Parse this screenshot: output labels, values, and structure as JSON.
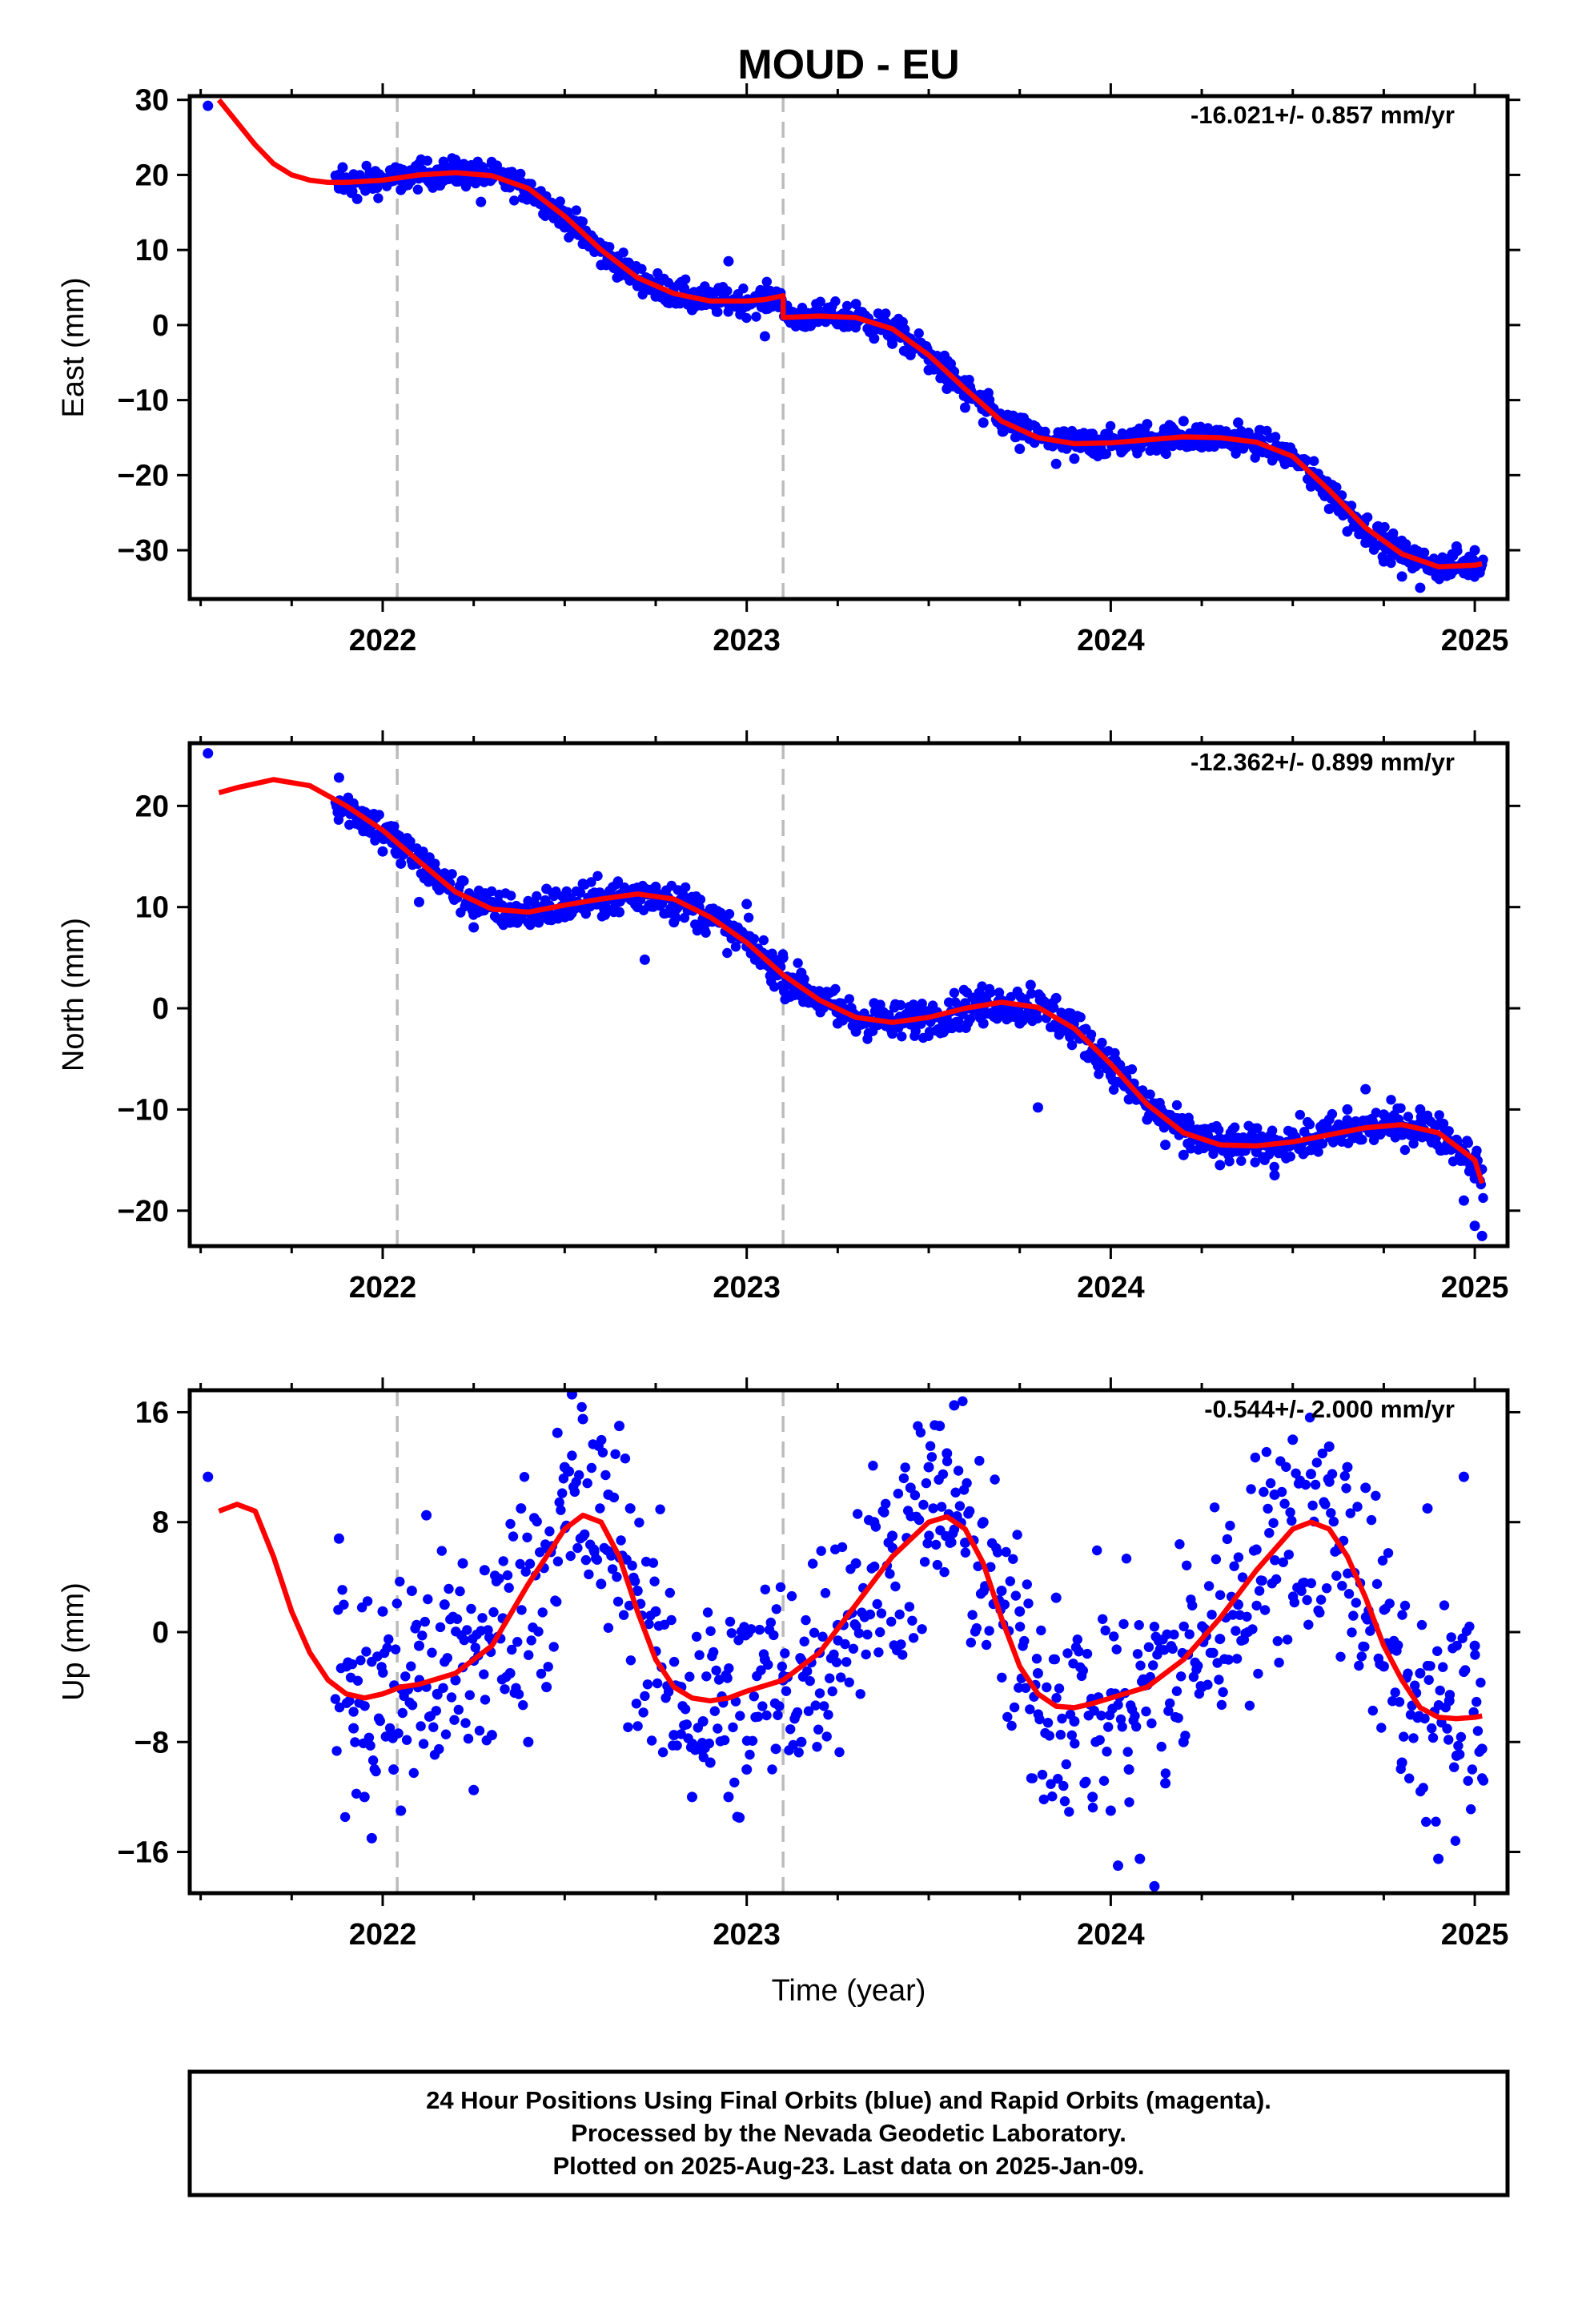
{
  "title": "MOUD - EU",
  "xlabel": "Time (year)",
  "colors": {
    "final_orbits": "#0000ff",
    "model": "#ff0000",
    "offset_lines": "#bbbbbb",
    "frame": "#000000"
  },
  "footer": {
    "line1": "24 Hour Positions Using Final Orbits (blue) and Rapid Orbits (magenta).",
    "line2": "Processed by the Nevada Geodetic Laboratory.",
    "line3": "Plotted on 2025-Aug-23. Last data on 2025-Jan-09."
  },
  "chart_data": [
    {
      "type": "scatter",
      "ylabel": "East (mm)",
      "rate": "-16.021+/- 0.857 mm/yr",
      "xlim": [
        2021.47,
        2025.09
      ],
      "ylim": [
        -36.5,
        30.5
      ],
      "xticks": [
        2022,
        2023,
        2024,
        2025
      ],
      "yticks": [
        -30,
        -20,
        -10,
        0,
        10,
        20,
        30
      ],
      "offset_lines": [
        2022.04,
        2023.1
      ],
      "model": {
        "x": [
          2021.55,
          2021.6,
          2021.65,
          2021.7,
          2021.75,
          2021.8,
          2021.85,
          2021.9,
          2022.0,
          2022.1,
          2022.2,
          2022.3,
          2022.4,
          2022.5,
          2022.6,
          2022.7,
          2022.8,
          2022.9,
          2023.0,
          2023.05,
          2023.1,
          2023.1,
          2023.2,
          2023.3,
          2023.4,
          2023.5,
          2023.6,
          2023.7,
          2023.8,
          2023.9,
          2024.0,
          2024.1,
          2024.2,
          2024.3,
          2024.4,
          2024.5,
          2024.6,
          2024.7,
          2024.8,
          2024.9,
          2025.0,
          2025.02
        ],
        "y": [
          30,
          27,
          24,
          21.5,
          20,
          19.3,
          19,
          19,
          19.3,
          20,
          20.3,
          19.9,
          18.2,
          14.5,
          10,
          6.3,
          4.2,
          3.2,
          3.2,
          3.4,
          3.9,
          1.0,
          1.2,
          1.0,
          -0.5,
          -4,
          -8.5,
          -12.8,
          -15,
          -15.8,
          -15.7,
          -15.3,
          -14.9,
          -15,
          -15.6,
          -17.5,
          -22,
          -27,
          -30.5,
          -32.2,
          -32,
          -31.8
        ]
      },
      "points": [
        [
          2021.52,
          29.2
        ],
        [
          2021.88,
          18.2
        ],
        [
          2021.89,
          21.0
        ],
        [
          2021.93,
          16.8
        ],
        [
          2021.98,
          20.5
        ],
        [
          2022.05,
          18.0
        ],
        [
          2022.1,
          21.5
        ],
        [
          2022.15,
          19.2
        ],
        [
          2022.2,
          22.0
        ],
        [
          2022.25,
          20.8
        ],
        [
          2022.27,
          16.4
        ],
        [
          2022.3,
          21.5
        ],
        [
          2022.35,
          18.5
        ],
        [
          2022.4,
          18.8
        ],
        [
          2022.45,
          16.5
        ],
        [
          2022.5,
          13.0
        ],
        [
          2022.55,
          10.8
        ],
        [
          2022.6,
          8.0
        ],
        [
          2022.65,
          6.5
        ],
        [
          2022.7,
          5.2
        ],
        [
          2022.75,
          3.8
        ],
        [
          2022.8,
          5.0
        ],
        [
          2022.85,
          2.0
        ],
        [
          2022.9,
          3.5
        ],
        [
          2022.95,
          8.5
        ],
        [
          2023.0,
          2.5
        ],
        [
          2023.05,
          -1.5
        ],
        [
          2023.15,
          0.0
        ],
        [
          2023.2,
          1.8
        ],
        [
          2023.25,
          0.3
        ],
        [
          2023.3,
          2.8
        ],
        [
          2023.35,
          -1.8
        ],
        [
          2023.4,
          -2.5
        ],
        [
          2023.45,
          -4.0
        ],
        [
          2023.5,
          -6.0
        ],
        [
          2023.55,
          -8.5
        ],
        [
          2023.6,
          -11.0
        ],
        [
          2023.65,
          -13.0
        ],
        [
          2023.7,
          -13.5
        ],
        [
          2023.75,
          -16.5
        ],
        [
          2023.8,
          -14.0
        ],
        [
          2023.85,
          -18.5
        ],
        [
          2023.9,
          -17.8
        ],
        [
          2023.95,
          -14.5
        ],
        [
          2024.05,
          -15.0
        ],
        [
          2024.1,
          -13.2
        ],
        [
          2024.15,
          -17.0
        ],
        [
          2024.2,
          -12.8
        ],
        [
          2024.25,
          -16.3
        ],
        [
          2024.3,
          -14.0
        ],
        [
          2024.35,
          -13.0
        ],
        [
          2024.4,
          -15.8
        ],
        [
          2024.45,
          -17.5
        ],
        [
          2024.5,
          -18.0
        ],
        [
          2024.55,
          -21.5
        ],
        [
          2024.6,
          -24.5
        ],
        [
          2024.65,
          -27.5
        ],
        [
          2024.7,
          -29.0
        ],
        [
          2024.75,
          -31.5
        ],
        [
          2024.8,
          -33.5
        ],
        [
          2024.85,
          -35.0
        ],
        [
          2024.9,
          -33.0
        ],
        [
          2024.95,
          -29.5
        ],
        [
          2025.0,
          -30.0
        ],
        [
          2025.02,
          -31.5
        ]
      ]
    },
    {
      "type": "scatter",
      "ylabel": "North (mm)",
      "rate": "-12.362+/- 0.899 mm/yr",
      "xlim": [
        2021.47,
        2025.09
      ],
      "ylim": [
        -23.5,
        26.2
      ],
      "xticks": [
        2022,
        2023,
        2024,
        2025
      ],
      "yticks": [
        -20,
        -10,
        0,
        10,
        20
      ],
      "offset_lines": [
        2022.04,
        2023.1
      ],
      "model": {
        "x": [
          2021.55,
          2021.6,
          2021.7,
          2021.8,
          2021.9,
          2022.0,
          2022.1,
          2022.2,
          2022.3,
          2022.4,
          2022.5,
          2022.6,
          2022.7,
          2022.8,
          2022.9,
          2023.0,
          2023.1,
          2023.2,
          2023.3,
          2023.4,
          2023.5,
          2023.6,
          2023.7,
          2023.8,
          2023.9,
          2024.0,
          2024.1,
          2024.2,
          2024.3,
          2024.4,
          2024.5,
          2024.6,
          2024.7,
          2024.8,
          2024.9,
          2025.0,
          2025.02
        ],
        "y": [
          21.3,
          21.8,
          22.6,
          22.0,
          20.0,
          17.6,
          14.5,
          11.5,
          9.8,
          9.5,
          10.2,
          10.8,
          11.3,
          10.8,
          9.0,
          6.5,
          3.3,
          0.8,
          -0.9,
          -1.4,
          -0.9,
          0.0,
          0.6,
          0.1,
          -2.0,
          -5.5,
          -9.5,
          -12.3,
          -13.5,
          -13.6,
          -13.2,
          -12.5,
          -11.8,
          -11.5,
          -12.3,
          -15.0,
          -17.3
        ]
      },
      "points": [
        [
          2021.52,
          25.2
        ],
        [
          2021.88,
          22.8
        ],
        [
          2021.9,
          20.5
        ],
        [
          2021.95,
          18.0
        ],
        [
          2022.0,
          15.5
        ],
        [
          2022.05,
          14.3
        ],
        [
          2022.1,
          10.5
        ],
        [
          2022.15,
          12.0
        ],
        [
          2022.2,
          11.3
        ],
        [
          2022.25,
          8.0
        ],
        [
          2022.3,
          10.5
        ],
        [
          2022.35,
          10.0
        ],
        [
          2022.4,
          8.5
        ],
        [
          2022.45,
          11.8
        ],
        [
          2022.5,
          9.0
        ],
        [
          2022.55,
          12.3
        ],
        [
          2022.6,
          11.0
        ],
        [
          2022.65,
          9.5
        ],
        [
          2022.7,
          10.0
        ],
        [
          2022.72,
          4.8
        ],
        [
          2022.75,
          12.0
        ],
        [
          2022.8,
          8.5
        ],
        [
          2022.85,
          11.0
        ],
        [
          2022.9,
          9.8
        ],
        [
          2022.95,
          7.5
        ],
        [
          2023.0,
          10.3
        ],
        [
          2023.05,
          4.5
        ],
        [
          2023.1,
          5.0
        ],
        [
          2023.15,
          3.5
        ],
        [
          2023.2,
          1.0
        ],
        [
          2023.25,
          -1.5
        ],
        [
          2023.3,
          -2.3
        ],
        [
          2023.35,
          0.5
        ],
        [
          2023.4,
          -2.5
        ],
        [
          2023.45,
          -0.5
        ],
        [
          2023.5,
          -1.0
        ],
        [
          2023.55,
          -2.0
        ],
        [
          2023.6,
          0.5
        ],
        [
          2023.65,
          -1.5
        ],
        [
          2023.7,
          -0.5
        ],
        [
          2023.75,
          -1.5
        ],
        [
          2023.78,
          2.3
        ],
        [
          2023.8,
          -9.8
        ],
        [
          2023.85,
          1.0
        ],
        [
          2023.9,
          -0.8
        ],
        [
          2023.95,
          -4.5
        ],
        [
          2024.0,
          -6.5
        ],
        [
          2024.05,
          -9.0
        ],
        [
          2024.1,
          -11.0
        ],
        [
          2024.15,
          -13.5
        ],
        [
          2024.2,
          -14.5
        ],
        [
          2024.25,
          -12.0
        ],
        [
          2024.3,
          -15.5
        ],
        [
          2024.35,
          -13.5
        ],
        [
          2024.4,
          -14.2
        ],
        [
          2024.45,
          -16.5
        ],
        [
          2024.5,
          -12.5
        ],
        [
          2024.55,
          -14.0
        ],
        [
          2024.6,
          -11.0
        ],
        [
          2024.65,
          -10.0
        ],
        [
          2024.7,
          -8.0
        ],
        [
          2024.75,
          -10.5
        ],
        [
          2024.8,
          -12.5
        ],
        [
          2024.85,
          -10.0
        ],
        [
          2024.9,
          -11.5
        ],
        [
          2024.95,
          -13.0
        ],
        [
          2024.97,
          -19.0
        ],
        [
          2025.0,
          -21.5
        ],
        [
          2025.02,
          -22.5
        ]
      ]
    },
    {
      "type": "scatter",
      "ylabel": "Up (mm)",
      "rate": "-0.544+/- 2.000 mm/yr",
      "xlim": [
        2021.47,
        2025.09
      ],
      "ylim": [
        -19.0,
        17.6
      ],
      "xticks": [
        2022,
        2023,
        2024,
        2025
      ],
      "yticks": [
        -16,
        -8,
        0,
        8,
        16
      ],
      "offset_lines": [
        2022.04,
        2023.1
      ],
      "model": {
        "x": [
          2021.55,
          2021.6,
          2021.65,
          2021.7,
          2021.75,
          2021.8,
          2021.85,
          2021.9,
          2021.95,
          2022.0,
          2022.05,
          2022.1,
          2022.2,
          2022.3,
          2022.4,
          2022.5,
          2022.55,
          2022.6,
          2022.65,
          2022.7,
          2022.75,
          2022.8,
          2022.85,
          2022.9,
          2022.95,
          2023.0,
          2023.1,
          2023.2,
          2023.3,
          2023.4,
          2023.5,
          2023.55,
          2023.6,
          2023.65,
          2023.7,
          2023.75,
          2023.8,
          2023.85,
          2023.9,
          2023.95,
          2024.0,
          2024.1,
          2024.2,
          2024.3,
          2024.4,
          2024.5,
          2024.55,
          2024.6,
          2024.65,
          2024.7,
          2024.75,
          2024.8,
          2024.85,
          2024.9,
          2024.95,
          2025.0,
          2025.02
        ],
        "y": [
          8.8,
          9.3,
          8.8,
          5.5,
          1.5,
          -1.5,
          -3.5,
          -4.5,
          -4.8,
          -4.5,
          -4.0,
          -3.8,
          -3.0,
          -1.0,
          3.5,
          7.5,
          8.5,
          8.0,
          5.5,
          1.5,
          -2.0,
          -4.0,
          -4.8,
          -5.0,
          -4.8,
          -4.3,
          -3.5,
          -1.5,
          2.0,
          5.5,
          8.0,
          8.4,
          7.5,
          5.0,
          1.0,
          -2.5,
          -4.5,
          -5.4,
          -5.5,
          -5.2,
          -4.8,
          -4.0,
          -2.0,
          1.0,
          4.5,
          7.5,
          8.0,
          7.5,
          5.5,
          2.5,
          -1.0,
          -3.5,
          -5.5,
          -6.2,
          -6.3,
          -6.2,
          -6.1
        ]
      },
      "points": [
        [
          2021.52,
          11.3
        ],
        [
          2021.88,
          6.8
        ],
        [
          2021.9,
          -2.5
        ],
        [
          2021.92,
          -7.0
        ],
        [
          2021.95,
          -12.0
        ],
        [
          2021.97,
          -15.0
        ],
        [
          2022.0,
          1.5
        ],
        [
          2022.03,
          -10.0
        ],
        [
          2022.05,
          -13.0
        ],
        [
          2022.08,
          3.0
        ],
        [
          2022.1,
          -1.0
        ],
        [
          2022.12,
          8.5
        ],
        [
          2022.15,
          -4.5
        ],
        [
          2022.17,
          2.0
        ],
        [
          2022.2,
          -3.5
        ],
        [
          2022.22,
          5.0
        ],
        [
          2022.25,
          -11.5
        ],
        [
          2022.28,
          4.5
        ],
        [
          2022.3,
          -7.5
        ],
        [
          2022.33,
          1.0
        ],
        [
          2022.35,
          -3.0
        ],
        [
          2022.38,
          9.0
        ],
        [
          2022.4,
          -8.0
        ],
        [
          2022.45,
          -4.0
        ],
        [
          2022.48,
          14.5
        ],
        [
          2022.5,
          12.0
        ],
        [
          2022.52,
          17.3
        ],
        [
          2022.55,
          15.5
        ],
        [
          2022.58,
          6.0
        ],
        [
          2022.6,
          3.5
        ],
        [
          2022.62,
          10.0
        ],
        [
          2022.65,
          15.0
        ],
        [
          2022.68,
          9.0
        ],
        [
          2022.7,
          3.0
        ],
        [
          2022.75,
          1.5
        ],
        [
          2022.8,
          -7.5
        ],
        [
          2022.82,
          -4.0
        ],
        [
          2022.85,
          -12.0
        ],
        [
          2022.88,
          -6.5
        ],
        [
          2022.9,
          -9.5
        ],
        [
          2022.95,
          -12.0
        ],
        [
          2022.98,
          -13.5
        ],
        [
          2023.0,
          -10.0
        ],
        [
          2023.05,
          -2.0
        ],
        [
          2023.08,
          -8.5
        ],
        [
          2023.1,
          -3.5
        ],
        [
          2023.15,
          -8.0
        ],
        [
          2023.2,
          -1.5
        ],
        [
          2023.25,
          0.5
        ],
        [
          2023.3,
          5.0
        ],
        [
          2023.35,
          8.0
        ],
        [
          2023.4,
          7.0
        ],
        [
          2023.45,
          10.5
        ],
        [
          2023.5,
          12.0
        ],
        [
          2023.53,
          15.0
        ],
        [
          2023.55,
          13.0
        ],
        [
          2023.57,
          16.5
        ],
        [
          2023.6,
          6.5
        ],
        [
          2023.65,
          8.0
        ],
        [
          2023.7,
          3.0
        ],
        [
          2023.75,
          1.5
        ],
        [
          2023.8,
          -3.0
        ],
        [
          2023.85,
          2.5
        ],
        [
          2023.9,
          -6.5
        ],
        [
          2023.95,
          -12.0
        ],
        [
          2024.0,
          -13.0
        ],
        [
          2024.02,
          -17.0
        ],
        [
          2024.05,
          -10.0
        ],
        [
          2024.08,
          -16.5
        ],
        [
          2024.1,
          -3.5
        ],
        [
          2024.12,
          -18.5
        ],
        [
          2024.15,
          -11.0
        ],
        [
          2024.2,
          -8.0
        ],
        [
          2024.25,
          -4.0
        ],
        [
          2024.3,
          -0.5
        ],
        [
          2024.35,
          2.0
        ],
        [
          2024.4,
          6.0
        ],
        [
          2024.45,
          10.0
        ],
        [
          2024.5,
          14.0
        ],
        [
          2024.55,
          11.5
        ],
        [
          2024.6,
          13.5
        ],
        [
          2024.65,
          12.0
        ],
        [
          2024.7,
          10.5
        ],
        [
          2024.75,
          -2.5
        ],
        [
          2024.8,
          -9.5
        ],
        [
          2024.85,
          -3.0
        ],
        [
          2024.87,
          9.0
        ],
        [
          2024.9,
          -16.5
        ],
        [
          2024.93,
          -5.0
        ],
        [
          2024.95,
          -9.0
        ],
        [
          2024.97,
          11.3
        ],
        [
          2025.0,
          -1.0
        ],
        [
          2025.02,
          -8.5
        ]
      ]
    }
  ]
}
